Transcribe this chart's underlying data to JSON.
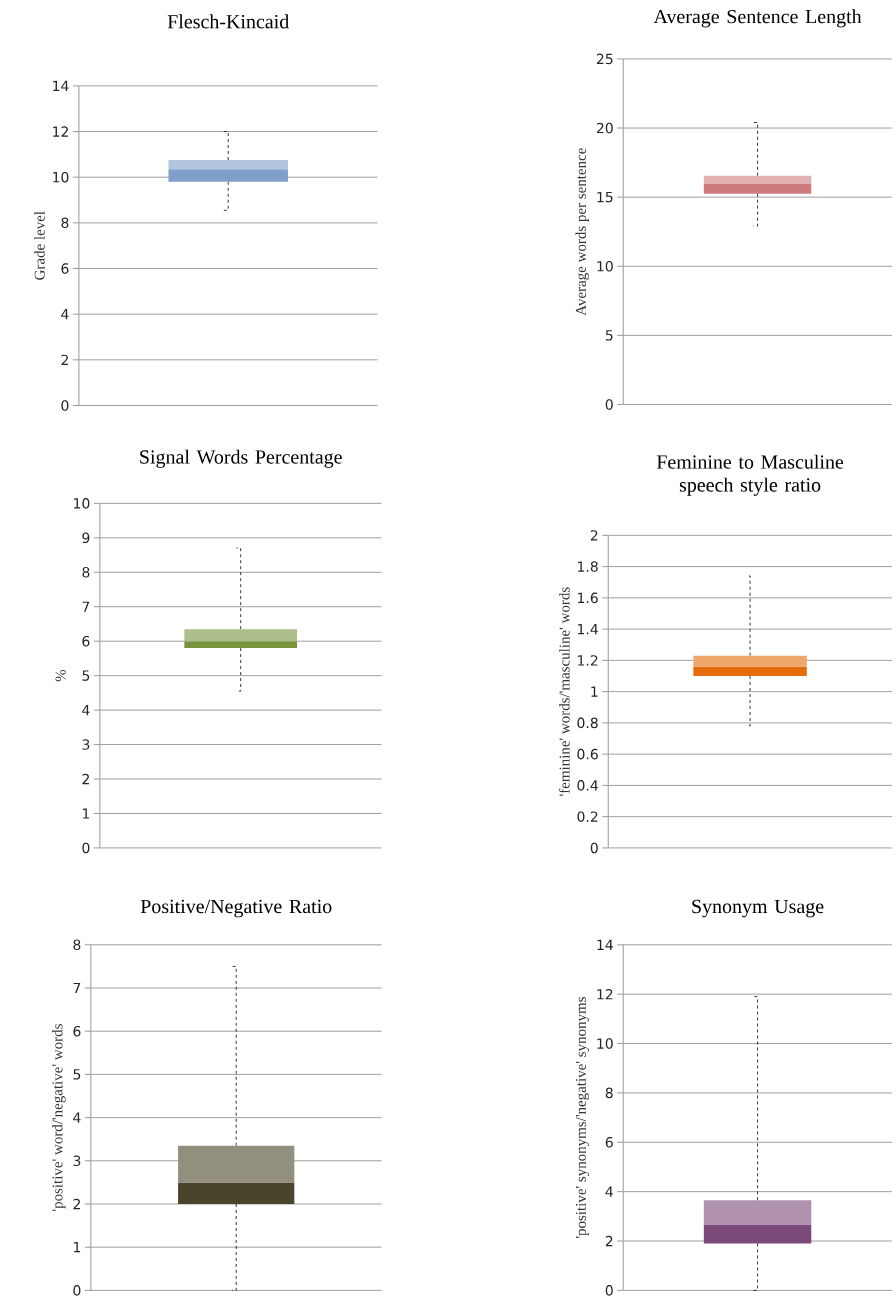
{
  "chart_data": [
    {
      "type": "box",
      "title": "Flesch-Kincaid",
      "ylabel": "Grade level",
      "categories": [
        null
      ],
      "series": [
        {
          "color": "#7f9ec9",
          "boxes": [
            {
              "low": 8.55,
              "q1": 9.8,
              "median": 10.35,
              "q3": 10.75,
              "high": 12
            }
          ]
        }
      ],
      "ylim": [
        0,
        14
      ],
      "yticks": [
        0,
        2,
        4,
        6,
        8,
        10,
        12,
        14
      ],
      "grid": "y",
      "line_style": "dashed"
    },
    {
      "type": "box",
      "title": "Average Sentence Length",
      "ylabel": "Average words per sentence",
      "categories": [
        null
      ],
      "series": [
        {
          "color": "#cd7b7b",
          "boxes": [
            {
              "low": 12.9,
              "q1": 15.25,
              "median": 15.95,
              "q3": 16.55,
              "high": 20.4
            }
          ]
        }
      ],
      "ylim": [
        0,
        25
      ],
      "yticks": [
        0,
        5,
        10,
        15,
        20,
        25
      ],
      "grid": "y",
      "line_style": "dashed"
    },
    {
      "type": "box",
      "title": "Signal Words Percentage",
      "ylabel": "%",
      "categories": [
        null
      ],
      "series": [
        {
          "color": "#77933c",
          "boxes": [
            {
              "low": 4.55,
              "q1": 5.8,
              "median": 6.0,
              "q3": 6.35,
              "high": 8.7
            }
          ]
        }
      ],
      "ylim": [
        0,
        10
      ],
      "yticks": [
        0,
        1,
        2,
        3,
        4,
        5,
        6,
        7,
        8,
        9,
        10
      ],
      "grid": "y",
      "line_style": "dashed"
    },
    {
      "type": "box",
      "title": "Feminine to Masculine speech style ratio",
      "ylabel": "'feminine' words/'masculine' words",
      "categories": [
        null
      ],
      "series": [
        {
          "color": "#e46c0a",
          "boxes": [
            {
              "low": 0.78,
              "q1": 1.1,
              "median": 1.16,
              "q3": 1.23,
              "high": 1.74
            }
          ]
        }
      ],
      "ylim": [
        0,
        2
      ],
      "yticks": [
        0,
        0.2,
        0.4,
        0.6,
        0.8,
        1,
        1.2,
        1.4,
        1.6,
        1.8,
        2
      ],
      "grid": "y",
      "line_style": "dashed"
    },
    {
      "type": "box",
      "title": "Positive/Negative Ratio",
      "ylabel": "'positive' word/'negative' words",
      "categories": [
        null
      ],
      "series": [
        {
          "color": "#4a452a",
          "boxes": [
            {
              "low": 0,
              "q1": 2.0,
              "median": 2.5,
              "q3": 3.35,
              "high": 7.5
            }
          ]
        }
      ],
      "ylim": [
        0,
        8
      ],
      "yticks": [
        0,
        1,
        2,
        3,
        4,
        5,
        6,
        7,
        8
      ],
      "grid": "y",
      "line_style": "dashed"
    },
    {
      "type": "box",
      "title": "Synonym Usage",
      "ylabel": "'positive' synonyms/'negative' synonyms",
      "categories": [
        null
      ],
      "series": [
        {
          "color": "#7b4a7a",
          "boxes": [
            {
              "low": 0,
              "q1": 1.9,
              "median": 2.65,
              "q3": 3.65,
              "high": 11.9
            }
          ]
        }
      ],
      "ylim": [
        0,
        14
      ],
      "yticks": [
        0,
        2,
        4,
        6,
        8,
        10,
        12,
        14
      ],
      "grid": "y",
      "line_style": "dashed"
    }
  ]
}
